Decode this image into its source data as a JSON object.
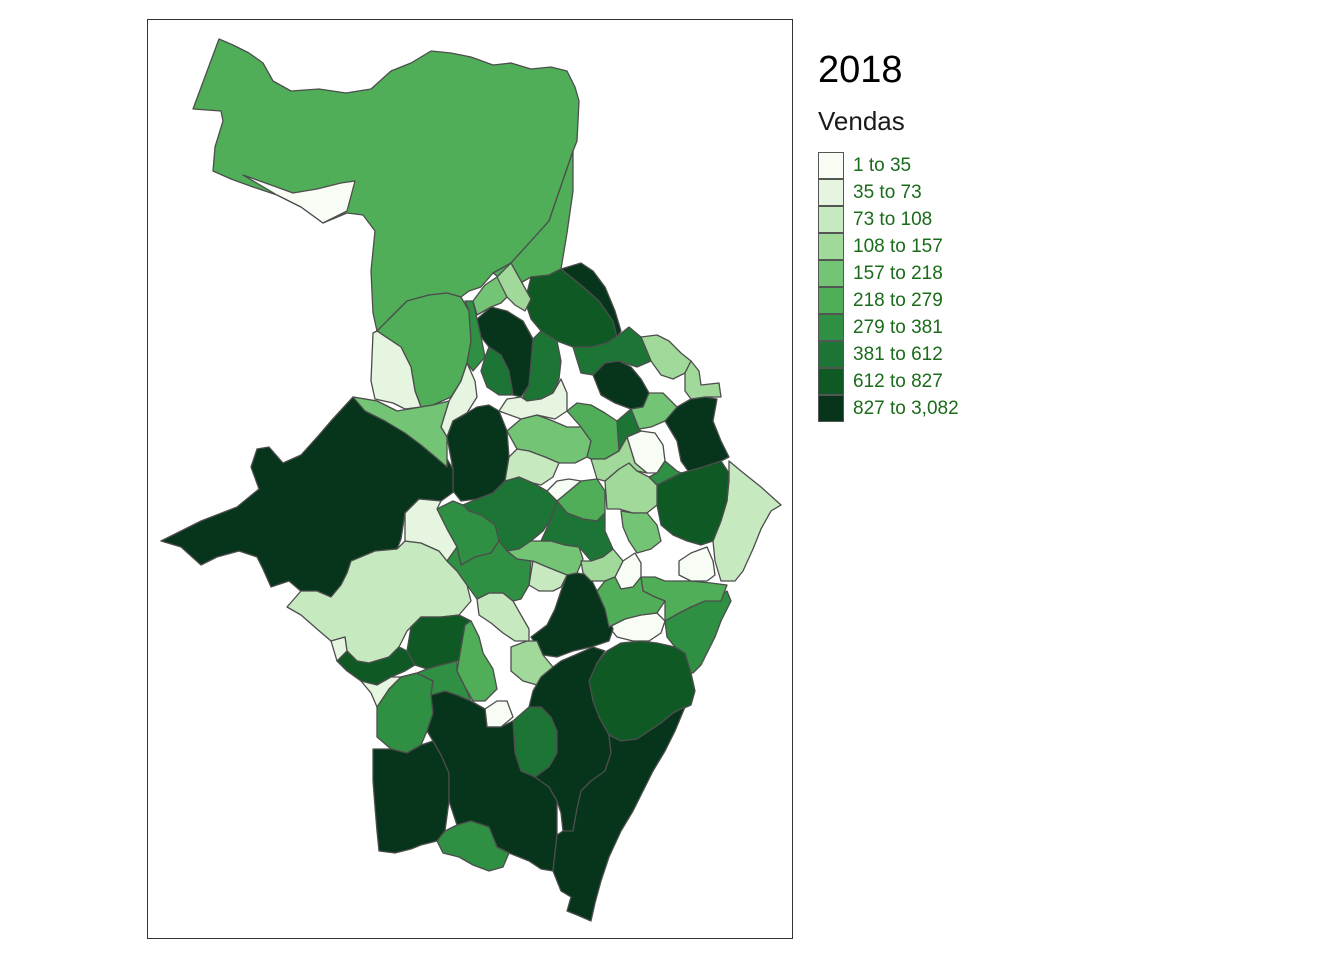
{
  "legend": {
    "year": "2018",
    "title": "Vendas",
    "classes": [
      {
        "label": "1 to 35",
        "color": "#f7fcf5"
      },
      {
        "label": "35 to 73",
        "color": "#e5f5e0"
      },
      {
        "label": "73 to 108",
        "color": "#c7e9c0"
      },
      {
        "label": "108 to 157",
        "color": "#a1d99b"
      },
      {
        "label": "157 to 218",
        "color": "#74c476"
      },
      {
        "label": "218 to 279",
        "color": "#4fae57"
      },
      {
        "label": "279 to 381",
        "color": "#2f8f43"
      },
      {
        "label": "381 to 612",
        "color": "#1d7535"
      },
      {
        "label": "612 to 827",
        "color": "#0f5a24"
      },
      {
        "label": "827 to 3,082",
        "color": "#06351b"
      }
    ]
  },
  "map": {
    "border_color": "#4d4d4d",
    "regions": [
      {
        "name": "north-large",
        "class": 5
      },
      {
        "name": "north-west-tip",
        "class": 0
      },
      {
        "name": "north-east-strip",
        "class": 5
      },
      {
        "name": "north-mid",
        "class": 5
      },
      {
        "name": "west-pale",
        "class": 1
      },
      {
        "name": "central-pale",
        "class": 1
      },
      {
        "name": "northeast-dark",
        "class": 8
      },
      {
        "name": "center-darkest",
        "class": 9
      },
      {
        "name": "center-tall-a",
        "class": 7
      },
      {
        "name": "center-tall-b",
        "class": 7
      },
      {
        "name": "west-large",
        "class": 9
      },
      {
        "name": "west-mid-green",
        "class": 4
      },
      {
        "name": "center-big-dark",
        "class": 9
      },
      {
        "name": "east-dark-a",
        "class": 9
      },
      {
        "name": "east-dark-b",
        "class": 9
      },
      {
        "name": "east-strip-light",
        "class": 2
      },
      {
        "name": "east-block-dark",
        "class": 8
      },
      {
        "name": "center-mid-a",
        "class": 7
      },
      {
        "name": "center-mid-b",
        "class": 6
      },
      {
        "name": "center-mid-c",
        "class": 5
      },
      {
        "name": "center-mid-d",
        "class": 3
      },
      {
        "name": "center-mid-e",
        "class": 4
      },
      {
        "name": "center-mid-f",
        "class": 2
      },
      {
        "name": "center-pale-a",
        "class": 0
      },
      {
        "name": "center-pale-b",
        "class": 0
      },
      {
        "name": "southwest-light",
        "class": 2
      },
      {
        "name": "south-center-dark",
        "class": 9
      },
      {
        "name": "south-east-dark",
        "class": 8
      },
      {
        "name": "south-mid-dark",
        "class": 8
      },
      {
        "name": "south-green-a",
        "class": 6
      },
      {
        "name": "south-green-b",
        "class": 5
      },
      {
        "name": "south-green-c",
        "class": 7
      },
      {
        "name": "south-light-a",
        "class": 3
      },
      {
        "name": "south-light-b",
        "class": 2
      },
      {
        "name": "south-pale-a",
        "class": 0
      },
      {
        "name": "far-south-a",
        "class": 9
      },
      {
        "name": "far-south-b",
        "class": 9
      },
      {
        "name": "far-south-c",
        "class": 9
      },
      {
        "name": "far-south-green",
        "class": 6
      },
      {
        "name": "south-coast",
        "class": 9
      },
      {
        "name": "east-coast-green",
        "class": 6
      },
      {
        "name": "east-mid-green",
        "class": 5
      },
      {
        "name": "east-small-pale",
        "class": 0
      },
      {
        "name": "north-small-a",
        "class": 4
      },
      {
        "name": "north-small-b",
        "class": 3
      },
      {
        "name": "north-small-c",
        "class": 6
      },
      {
        "name": "north-small-d",
        "class": 9
      },
      {
        "name": "north-small-e",
        "class": 3
      },
      {
        "name": "north-small-f",
        "class": 7
      },
      {
        "name": "east-small-a",
        "class": 3
      },
      {
        "name": "east-small-b",
        "class": 4
      },
      {
        "name": "east-small-c",
        "class": 0
      },
      {
        "name": "center-small-a",
        "class": 4
      },
      {
        "name": "center-small-b",
        "class": 2
      },
      {
        "name": "center-small-c",
        "class": 1
      },
      {
        "name": "center-small-d",
        "class": 5
      },
      {
        "name": "center-small-e",
        "class": 0
      },
      {
        "name": "center-small-f",
        "class": 7
      },
      {
        "name": "center-small-g",
        "class": 3
      },
      {
        "name": "center-small-h",
        "class": 6
      },
      {
        "name": "center-small-i",
        "class": 4
      },
      {
        "name": "southwest-small-a",
        "class": 8
      },
      {
        "name": "southwest-small-b",
        "class": 6
      },
      {
        "name": "southwest-small-c",
        "class": 1
      },
      {
        "name": "southwest-small-d",
        "class": 1
      },
      {
        "name": "southwest-pale-b",
        "class": 1
      },
      {
        "name": "sw-green",
        "class": 6
      },
      {
        "name": "mid-green-small",
        "class": 7
      },
      {
        "name": "south-small-c",
        "class": 3
      },
      {
        "name": "mid-small-d",
        "class": 5
      }
    ]
  }
}
